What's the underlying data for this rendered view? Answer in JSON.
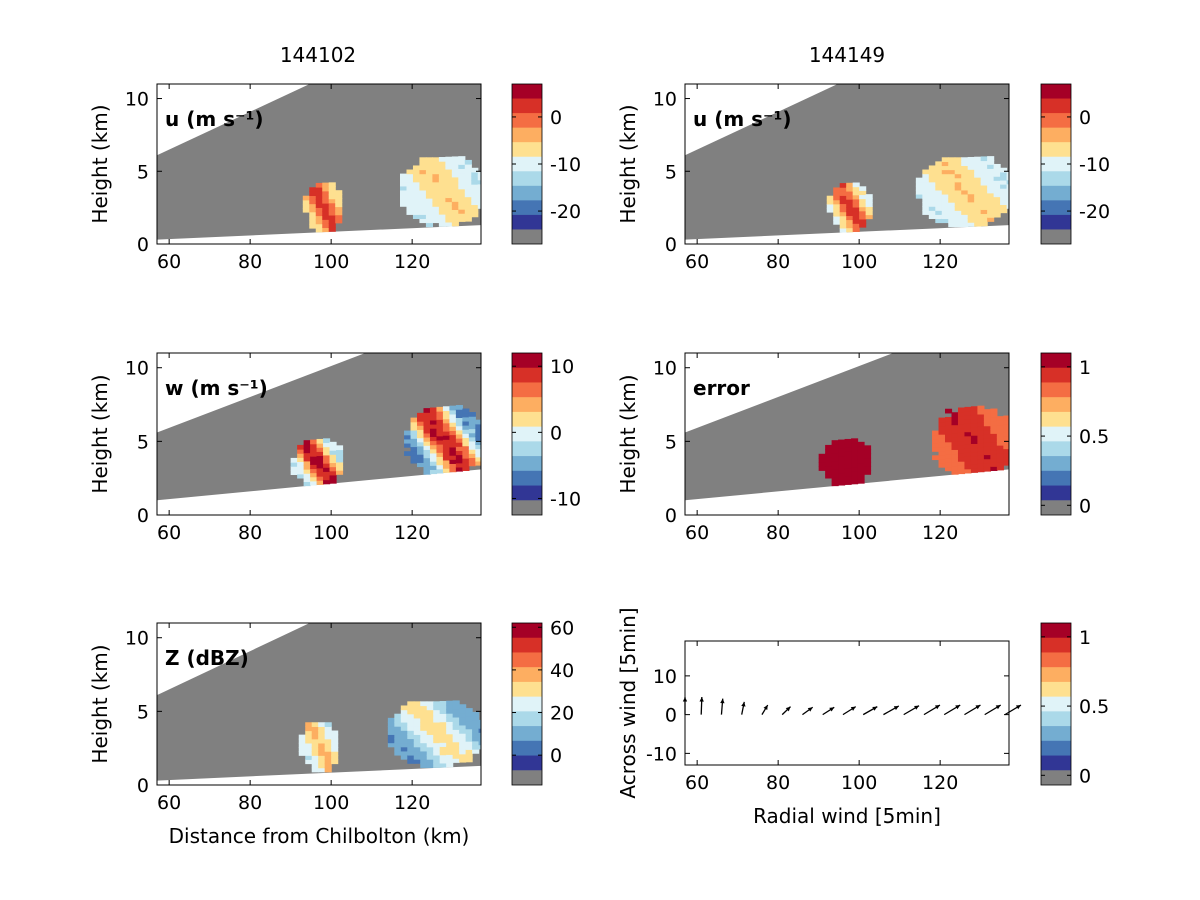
{
  "colors": {
    "no_data_gray": "#808080",
    "background": "#ffffff",
    "colormap_RdYlBu": [
      "#313695",
      "#4575b4",
      "#74add1",
      "#abd9e9",
      "#e0f3f8",
      "#fee090",
      "#fdae61",
      "#f46d43",
      "#d73027",
      "#a50026"
    ],
    "arrow": "#000000"
  },
  "columns": {
    "left_title": "144102",
    "right_title": "144149"
  },
  "chart_data": [
    {
      "id": "u-left",
      "type": "heatmap",
      "title": "144102",
      "panel_label": "u (m s⁻¹)",
      "xlabel": "",
      "ylabel": "Height (km)",
      "xlim": [
        57,
        137
      ],
      "ylim": [
        0,
        11
      ],
      "x_ticks": [
        "60",
        "80",
        "100",
        "120"
      ],
      "x_tick_values": [
        60,
        80,
        100,
        120
      ],
      "y_ticks": [
        "0",
        "5",
        "10"
      ],
      "y_tick_values": [
        0,
        5,
        10
      ],
      "scan_bottom_km": [
        0.3,
        1.3
      ],
      "scan_top_km": [
        6.1,
        16.5
      ],
      "colorbar": {
        "ticks": [
          "0",
          "-10",
          "-20"
        ],
        "tick_values": [
          0,
          -10,
          -20
        ],
        "range": [
          -27,
          7
        ]
      },
      "features": [
        {
          "x": [
            93,
            102
          ],
          "y": [
            0.8,
            4.0
          ],
          "value_range": [
            -10,
            3
          ],
          "description": "cell"
        },
        {
          "x": [
            117,
            137
          ],
          "y": [
            1.2,
            5.8
          ],
          "value_range": [
            -14,
            -6
          ],
          "description": "cell"
        }
      ]
    },
    {
      "id": "u-right",
      "type": "heatmap",
      "title": "144149",
      "panel_label": "u (m s⁻¹)",
      "xlabel": "",
      "ylabel": "Height (km)",
      "xlim": [
        57,
        137
      ],
      "ylim": [
        0,
        11
      ],
      "x_ticks": [
        "60",
        "80",
        "100",
        "120"
      ],
      "x_tick_values": [
        60,
        80,
        100,
        120
      ],
      "y_ticks": [
        "0",
        "5",
        "10"
      ],
      "y_tick_values": [
        0,
        5,
        10
      ],
      "scan_bottom_km": [
        0.3,
        1.3
      ],
      "scan_top_km": [
        6.1,
        16.5
      ],
      "colorbar": {
        "ticks": [
          "0",
          "-10",
          "-20"
        ],
        "tick_values": [
          0,
          -10,
          -20
        ],
        "range": [
          -27,
          7
        ]
      },
      "features": [
        {
          "x": [
            92,
            102
          ],
          "y": [
            0.8,
            4.0
          ],
          "value_range": [
            -12,
            3
          ],
          "description": "cell"
        },
        {
          "x": [
            114,
            137
          ],
          "y": [
            1.2,
            5.8
          ],
          "value_range": [
            -14,
            -6
          ],
          "description": "cell"
        }
      ]
    },
    {
      "id": "w-left",
      "type": "heatmap",
      "title": "",
      "panel_label": "w (m s⁻¹)",
      "xlabel": "",
      "ylabel": "Height (km)",
      "xlim": [
        57,
        137
      ],
      "ylim": [
        0,
        11
      ],
      "x_ticks": [
        "60",
        "80",
        "100",
        "120"
      ],
      "x_tick_values": [
        60,
        80,
        100,
        120
      ],
      "y_ticks": [
        "0",
        "5",
        "10"
      ],
      "y_tick_values": [
        0,
        5,
        10
      ],
      "scan_bottom_km": [
        1.0,
        3.1
      ],
      "scan_top_km": [
        5.6,
        14.0
      ],
      "colorbar": {
        "ticks": [
          "10",
          "0",
          "-10"
        ],
        "tick_values": [
          10,
          0,
          -10
        ],
        "range": [
          -12.5,
          12
        ]
      },
      "features": [
        {
          "x": [
            90,
            102
          ],
          "y": [
            1.9,
            5.0
          ],
          "value_range": [
            -4,
            12
          ],
          "description": "cell"
        },
        {
          "x": [
            118,
            137
          ],
          "y": [
            2.5,
            7.2
          ],
          "value_range": [
            -10,
            12
          ],
          "description": "cell"
        }
      ]
    },
    {
      "id": "error-right",
      "type": "heatmap",
      "title": "",
      "panel_label": "error",
      "xlabel": "",
      "ylabel": "Height (km)",
      "xlim": [
        57,
        137
      ],
      "ylim": [
        0,
        11
      ],
      "x_ticks": [
        "60",
        "80",
        "100",
        "120"
      ],
      "x_tick_values": [
        60,
        80,
        100,
        120
      ],
      "y_ticks": [
        "0",
        "5",
        "10"
      ],
      "y_tick_values": [
        0,
        5,
        10
      ],
      "scan_bottom_km": [
        1.0,
        3.1
      ],
      "scan_top_km": [
        5.6,
        14.0
      ],
      "colorbar": {
        "ticks": [
          "1",
          "0.5",
          "0"
        ],
        "tick_values": [
          1,
          0.5,
          0
        ],
        "range": [
          -0.07,
          1.1
        ]
      },
      "features": [
        {
          "x": [
            90,
            102
          ],
          "y": [
            1.9,
            5.0
          ],
          "value_range": [
            1,
            1
          ],
          "description": "cell"
        },
        {
          "x": [
            118,
            137
          ],
          "y": [
            2.5,
            7.2
          ],
          "value_range": [
            0.8,
            1
          ],
          "description": "cell"
        }
      ]
    },
    {
      "id": "z-left",
      "type": "heatmap",
      "title": "",
      "panel_label": "Z (dBZ)",
      "xlabel": "Distance from Chilbolton (km)",
      "ylabel": "Height (km)",
      "xlim": [
        57,
        137
      ],
      "ylim": [
        0,
        11
      ],
      "x_ticks": [
        "60",
        "80",
        "100",
        "120"
      ],
      "x_tick_values": [
        60,
        80,
        100,
        120
      ],
      "y_ticks": [
        "0",
        "5",
        "10"
      ],
      "y_tick_values": [
        0,
        5,
        10
      ],
      "scan_bottom_km": [
        0.3,
        1.3
      ],
      "scan_top_km": [
        6.1,
        16.5
      ],
      "colorbar": {
        "ticks": [
          "60",
          "40",
          "20",
          "0"
        ],
        "tick_values": [
          60,
          40,
          20,
          0
        ],
        "range": [
          -14,
          62
        ]
      },
      "features": [
        {
          "x": [
            92,
            101
          ],
          "y": [
            0.9,
            4.2
          ],
          "value_range": [
            15,
            35
          ],
          "description": "cell"
        },
        {
          "x": [
            114,
            137
          ],
          "y": [
            1.2,
            5.6
          ],
          "value_range": [
            0,
            30
          ],
          "description": "cell"
        }
      ]
    },
    {
      "id": "quiver-right",
      "type": "scatter",
      "title": "",
      "panel_label": "",
      "xlabel": "Radial wind [5min]",
      "ylabel": "Across wind [5min]",
      "xlim": [
        57,
        137
      ],
      "ylim": [
        -13,
        19
      ],
      "x_ticks": [
        "60",
        "80",
        "100",
        "120"
      ],
      "x_tick_values": [
        60,
        80,
        100,
        120
      ],
      "y_ticks": [
        "10",
        "0",
        "-10"
      ],
      "y_tick_values": [
        10,
        0,
        -10
      ],
      "colorbar": {
        "ticks": [
          "1",
          "0.5",
          "0"
        ],
        "tick_values": [
          1,
          0.5,
          0
        ],
        "range": [
          -0.07,
          1.1
        ]
      },
      "vectors": {
        "x": [
          57,
          61,
          66,
          71,
          76,
          81,
          86,
          91,
          96,
          101,
          106,
          111,
          116,
          121,
          126,
          131,
          136
        ],
        "y": [
          0,
          0,
          0,
          0,
          0,
          0,
          0,
          0,
          0,
          0,
          0,
          0,
          0,
          0,
          0,
          0,
          0
        ],
        "u": [
          0,
          0.2,
          0.4,
          0.8,
          1.8,
          2.6,
          3.2,
          3.6,
          4.0,
          4.4,
          4.8,
          4.8,
          5.0,
          5.0,
          5.0,
          5.0,
          5.0
        ],
        "v": [
          5.5,
          5.5,
          5.0,
          4.0,
          3.0,
          2.5,
          2.3,
          2.3,
          2.5,
          2.5,
          2.7,
          2.8,
          3.0,
          3.0,
          3.0,
          3.0,
          3.0
        ]
      }
    }
  ]
}
